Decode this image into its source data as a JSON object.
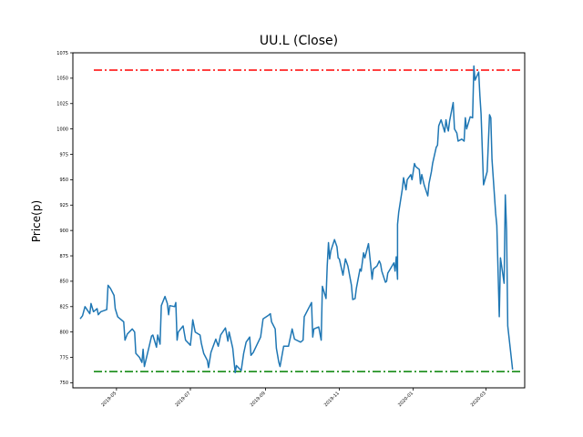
{
  "chart_data": {
    "type": "line",
    "title": "UU.L (Close)",
    "xlabel": "",
    "ylabel": "Price(p)",
    "xlim": [
      "2019-03-26",
      "2020-04-02"
    ],
    "ylim": [
      745,
      1075
    ],
    "grid": false,
    "legend": "none",
    "y_ticks": [
      750,
      775,
      800,
      825,
      850,
      875,
      900,
      925,
      950,
      975,
      1000,
      1025,
      1050,
      1075
    ],
    "x_ticks": [
      "2019-05",
      "2019-07",
      "2019-09",
      "2019-11",
      "2020-01",
      "2020-03"
    ],
    "reference_lines": [
      {
        "y": 1058,
        "color": "#ff0000",
        "style": "dashdot"
      },
      {
        "y": 761,
        "color": "#008000",
        "style": "dashdot"
      }
    ],
    "series": [
      {
        "color": "#1f77b4",
        "points": [
          [
            "2019-04-01",
            813
          ],
          [
            "2019-04-03",
            816
          ],
          [
            "2019-04-05",
            825
          ],
          [
            "2019-04-09",
            818
          ],
          [
            "2019-04-10",
            828
          ],
          [
            "2019-04-12",
            820
          ],
          [
            "2019-04-15",
            823
          ],
          [
            "2019-04-16",
            817
          ],
          [
            "2019-04-18",
            820
          ],
          [
            "2019-04-23",
            822
          ],
          [
            "2019-04-24",
            846
          ],
          [
            "2019-04-26",
            843
          ],
          [
            "2019-04-29",
            836
          ],
          [
            "2019-04-30",
            823
          ],
          [
            "2019-05-02",
            815
          ],
          [
            "2019-05-03",
            814
          ],
          [
            "2019-05-07",
            810
          ],
          [
            "2019-05-08",
            792
          ],
          [
            "2019-05-10",
            798
          ],
          [
            "2019-05-14",
            803
          ],
          [
            "2019-05-16",
            800
          ],
          [
            "2019-05-17",
            779
          ],
          [
            "2019-05-20",
            775
          ],
          [
            "2019-05-22",
            770
          ],
          [
            "2019-05-23",
            783
          ],
          [
            "2019-05-24",
            766
          ],
          [
            "2019-05-28",
            786
          ],
          [
            "2019-05-30",
            796
          ],
          [
            "2019-05-31",
            797
          ],
          [
            "2019-06-03",
            785
          ],
          [
            "2019-06-04",
            797
          ],
          [
            "2019-06-06",
            788
          ],
          [
            "2019-06-07",
            826
          ],
          [
            "2019-06-10",
            835
          ],
          [
            "2019-06-12",
            828
          ],
          [
            "2019-06-13",
            817
          ],
          [
            "2019-06-14",
            826
          ],
          [
            "2019-06-18",
            825
          ],
          [
            "2019-06-19",
            829
          ],
          [
            "2019-06-20",
            792
          ],
          [
            "2019-06-21",
            800
          ],
          [
            "2019-06-25",
            806
          ],
          [
            "2019-06-27",
            792
          ],
          [
            "2019-07-01",
            787
          ],
          [
            "2019-07-02",
            798
          ],
          [
            "2019-07-03",
            812
          ],
          [
            "2019-07-05",
            800
          ],
          [
            "2019-07-09",
            797
          ],
          [
            "2019-07-10",
            789
          ],
          [
            "2019-07-12",
            779
          ],
          [
            "2019-07-15",
            772
          ],
          [
            "2019-07-16",
            765
          ],
          [
            "2019-07-18",
            780
          ],
          [
            "2019-07-22",
            793
          ],
          [
            "2019-07-24",
            786
          ],
          [
            "2019-07-26",
            797
          ],
          [
            "2019-07-30",
            804
          ],
          [
            "2019-08-01",
            791
          ],
          [
            "2019-08-02",
            800
          ],
          [
            "2019-08-05",
            784
          ],
          [
            "2019-08-07",
            760
          ],
          [
            "2019-08-08",
            767
          ],
          [
            "2019-08-12",
            762
          ],
          [
            "2019-08-14",
            779
          ],
          [
            "2019-08-16",
            790
          ],
          [
            "2019-08-19",
            795
          ],
          [
            "2019-08-20",
            777
          ],
          [
            "2019-08-22",
            780
          ],
          [
            "2019-08-28",
            795
          ],
          [
            "2019-08-30",
            813
          ],
          [
            "2019-09-03",
            816
          ],
          [
            "2019-09-05",
            818
          ],
          [
            "2019-09-06",
            810
          ],
          [
            "2019-09-09",
            803
          ],
          [
            "2019-09-10",
            784
          ],
          [
            "2019-09-12",
            770
          ],
          [
            "2019-09-13",
            766
          ],
          [
            "2019-09-16",
            786
          ],
          [
            "2019-09-19",
            786
          ],
          [
            "2019-09-20",
            786
          ],
          [
            "2019-09-23",
            803
          ],
          [
            "2019-09-25",
            793
          ],
          [
            "2019-09-30",
            790
          ],
          [
            "2019-10-02",
            792
          ],
          [
            "2019-10-03",
            815
          ],
          [
            "2019-10-09",
            829
          ],
          [
            "2019-10-10",
            795
          ],
          [
            "2019-10-11",
            803
          ],
          [
            "2019-10-15",
            805
          ],
          [
            "2019-10-17",
            792
          ],
          [
            "2019-10-18",
            845
          ],
          [
            "2019-10-21",
            833
          ],
          [
            "2019-10-22",
            865
          ],
          [
            "2019-10-23",
            888
          ],
          [
            "2019-10-24",
            872
          ],
          [
            "2019-10-25",
            880
          ],
          [
            "2019-10-28",
            891
          ],
          [
            "2019-10-30",
            884
          ],
          [
            "2019-10-31",
            873
          ],
          [
            "2019-11-01",
            872
          ],
          [
            "2019-11-04",
            856
          ],
          [
            "2019-11-06",
            872
          ],
          [
            "2019-11-08",
            865
          ],
          [
            "2019-11-11",
            846
          ],
          [
            "2019-11-12",
            832
          ],
          [
            "2019-11-14",
            833
          ],
          [
            "2019-11-15",
            843
          ],
          [
            "2019-11-18",
            862
          ],
          [
            "2019-11-19",
            860
          ],
          [
            "2019-11-21",
            878
          ],
          [
            "2019-11-22",
            873
          ],
          [
            "2019-11-25",
            887
          ],
          [
            "2019-11-26",
            876
          ],
          [
            "2019-11-28",
            852
          ],
          [
            "2019-11-29",
            862
          ],
          [
            "2019-12-02",
            865
          ],
          [
            "2019-12-04",
            870
          ],
          [
            "2019-12-05",
            867
          ],
          [
            "2019-12-06",
            860
          ],
          [
            "2019-12-09",
            849
          ],
          [
            "2019-12-10",
            850
          ],
          [
            "2019-12-11",
            858
          ],
          [
            "2019-12-13",
            862
          ],
          [
            "2019-12-16",
            868
          ],
          [
            "2019-12-17",
            860
          ],
          [
            "2019-12-18",
            874
          ],
          [
            "2019-12-19",
            852
          ],
          [
            "2019-12-19",
            906
          ],
          [
            "2019-12-20",
            918
          ],
          [
            "2019-12-23",
            941
          ],
          [
            "2019-12-24",
            952
          ],
          [
            "2019-12-26",
            940
          ],
          [
            "2019-12-27",
            950
          ],
          [
            "2019-12-30",
            955
          ],
          [
            "2019-12-31",
            950
          ],
          [
            "2020-01-02",
            966
          ],
          [
            "2020-01-03",
            963
          ],
          [
            "2020-01-06",
            960
          ],
          [
            "2020-01-07",
            946
          ],
          [
            "2020-01-08",
            955
          ],
          [
            "2020-01-10",
            945
          ],
          [
            "2020-01-13",
            934
          ],
          [
            "2020-01-14",
            946
          ],
          [
            "2020-01-16",
            958
          ],
          [
            "2020-01-17",
            966
          ],
          [
            "2020-01-20",
            982
          ],
          [
            "2020-01-21",
            984
          ],
          [
            "2020-01-22",
            1003
          ],
          [
            "2020-01-23",
            1006
          ],
          [
            "2020-01-24",
            1009
          ],
          [
            "2020-01-27",
            997
          ],
          [
            "2020-01-28",
            1009
          ],
          [
            "2020-01-29",
            1002
          ],
          [
            "2020-01-30",
            998
          ],
          [
            "2020-01-31",
            1008
          ],
          [
            "2020-02-03",
            1026
          ],
          [
            "2020-02-04",
            1000
          ],
          [
            "2020-02-06",
            996
          ],
          [
            "2020-02-07",
            988
          ],
          [
            "2020-02-10",
            990
          ],
          [
            "2020-02-12",
            988
          ],
          [
            "2020-02-13",
            1011
          ],
          [
            "2020-02-14",
            1000
          ],
          [
            "2020-02-17",
            1012
          ],
          [
            "2020-02-19",
            1011
          ],
          [
            "2020-02-20",
            1062
          ],
          [
            "2020-02-21",
            1048
          ],
          [
            "2020-02-24",
            1056
          ],
          [
            "2020-02-25",
            1033
          ],
          [
            "2020-02-26",
            1015
          ],
          [
            "2020-02-28",
            945
          ],
          [
            "2020-03-02",
            958
          ],
          [
            "2020-03-04",
            1014
          ],
          [
            "2020-03-05",
            1011
          ],
          [
            "2020-03-06",
            970
          ],
          [
            "2020-03-09",
            917
          ],
          [
            "2020-03-10",
            905
          ],
          [
            "2020-03-12",
            815
          ],
          [
            "2020-03-13",
            873
          ],
          [
            "2020-03-16",
            848
          ],
          [
            "2020-03-17",
            935
          ],
          [
            "2020-03-18",
            900
          ],
          [
            "2020-03-19",
            806
          ],
          [
            "2020-03-23",
            763
          ]
        ]
      }
    ]
  }
}
